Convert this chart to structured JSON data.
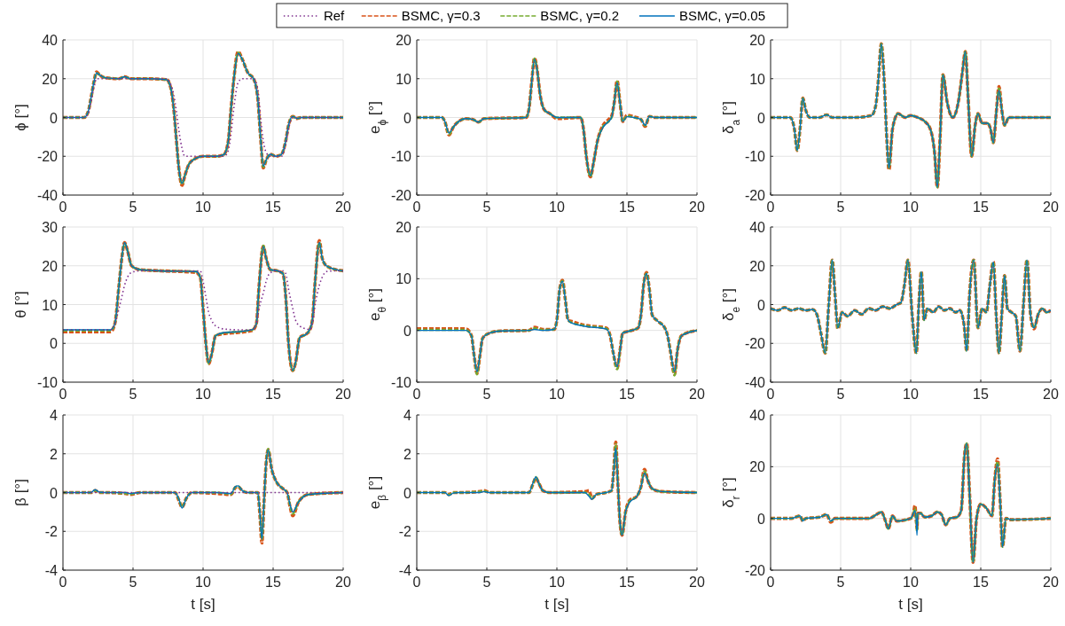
{
  "chart_data": [
    {
      "type": "line",
      "ylabel": "ϕ [°]",
      "legend": "top",
      "grid": true,
      "xlim": [
        0,
        20
      ],
      "xticks": [
        0,
        5,
        10,
        15,
        20
      ],
      "ylim": [
        -40,
        40
      ],
      "yticks": [
        -40,
        -20,
        0,
        20,
        40
      ],
      "x": [
        0,
        1.5,
        1.8,
        2.0,
        2.2,
        2.4,
        2.6,
        3.0,
        4.0,
        4.4,
        4.8,
        6,
        7.4,
        7.7,
        7.9,
        8.1,
        8.3,
        8.5,
        8.7,
        9.0,
        9.5,
        10,
        11,
        11.5,
        11.8,
        12.0,
        12.2,
        12.5,
        12.8,
        13.2,
        13.6,
        13.9,
        14.1,
        14.3,
        14.5,
        14.8,
        15.2,
        15.6,
        15.9,
        16.1,
        16.4,
        16.7,
        17,
        20
      ],
      "series": [
        {
          "name": "Ref",
          "color": "#7e2f8e",
          "line_style": "dotted",
          "values": [
            0,
            0,
            2,
            8,
            15,
            20,
            20,
            20,
            20,
            20,
            20,
            20,
            20,
            17,
            12,
            3,
            -8,
            -16,
            -20,
            -20,
            -20,
            -20,
            -20,
            -20,
            -17,
            -8,
            5,
            18,
            20,
            20,
            20,
            15,
            0,
            -12,
            -18,
            -20,
            -20,
            -20,
            -14,
            -6,
            0,
            0,
            0,
            0
          ]
        },
        {
          "name": "BSMC, γ=0.3",
          "color": "#d95319",
          "line_style": "dashed",
          "values": [
            0,
            0,
            3,
            10,
            18,
            23.5,
            22,
            20.5,
            20,
            21,
            20,
            20,
            19.5,
            15,
            5,
            -12,
            -28,
            -35,
            -30,
            -24,
            -21,
            -20,
            -20,
            -19,
            -12,
            5,
            20,
            34,
            30,
            23,
            20,
            10,
            -10,
            -26,
            -22,
            -19,
            -20,
            -19,
            -12,
            -4,
            0.5,
            -0.5,
            0,
            0
          ]
        },
        {
          "name": "BSMC, γ=0.2",
          "color": "#77ac30",
          "line_style": "dashed",
          "values": [
            0,
            0,
            3,
            10,
            18,
            23,
            22,
            20.5,
            20,
            21,
            20,
            20,
            19.5,
            15,
            5,
            -12,
            -28,
            -34.5,
            -30,
            -24,
            -21,
            -20,
            -20,
            -19,
            -12,
            5,
            20,
            33.5,
            30,
            23,
            20,
            10,
            -10,
            -25.5,
            -22,
            -19,
            -20,
            -19,
            -12,
            -4,
            0.5,
            -0.5,
            0,
            0
          ]
        },
        {
          "name": "BSMC, γ=0.05",
          "color": "#0072bd",
          "line_style": "solid",
          "values": [
            0,
            0,
            3,
            10,
            18,
            23,
            22,
            20.5,
            20,
            21,
            20,
            20,
            19.5,
            15,
            5,
            -12,
            -28,
            -34,
            -30,
            -24,
            -21,
            -20,
            -20,
            -19,
            -12,
            5,
            20,
            33,
            30,
            23,
            20,
            10,
            -10,
            -25,
            -22,
            -19,
            -20,
            -19,
            -12,
            -4,
            0.5,
            -0.5,
            0,
            0
          ]
        }
      ]
    },
    {
      "type": "line",
      "ylabel": "e$_{ϕ}$ [°]",
      "grid": true,
      "xlim": [
        0,
        20
      ],
      "xticks": [
        0,
        5,
        10,
        15,
        20
      ],
      "ylim": [
        -20,
        20
      ],
      "yticks": [
        -20,
        -10,
        0,
        10,
        20
      ],
      "x": [
        0,
        1.8,
        2.0,
        2.3,
        2.6,
        3,
        3.5,
        4,
        4.4,
        4.8,
        7.8,
        8.0,
        8.2,
        8.4,
        8.6,
        8.8,
        9.1,
        9.5,
        10,
        11.7,
        11.9,
        12.1,
        12.4,
        12.6,
        12.9,
        13.3,
        13.7,
        13.9,
        14.1,
        14.3,
        14.5,
        14.7,
        15,
        15.5,
        16,
        16.3,
        16.6,
        17,
        20
      ],
      "series": [
        {
          "color": "#d95319",
          "line_style": "dashed",
          "values": [
            0,
            0,
            -1,
            -4.5,
            -2.5,
            -1,
            -0.3,
            -0.5,
            -1.2,
            -0.3,
            0,
            2,
            9,
            15.3,
            12,
            6,
            2,
            1,
            -0.3,
            0,
            -3,
            -10,
            -15.3,
            -12,
            -6,
            -2,
            -0.5,
            0.3,
            4,
            9.5,
            4,
            -1,
            0.6,
            0.2,
            -0.5,
            -2.3,
            0.3,
            0,
            0
          ]
        },
        {
          "color": "#77ac30",
          "line_style": "dashed",
          "values": [
            0,
            0,
            -1,
            -4.3,
            -2.5,
            -1,
            -0.3,
            -0.5,
            -1.2,
            -0.3,
            0,
            2,
            9,
            15.2,
            12,
            6,
            2,
            1,
            0,
            0,
            -3,
            -10,
            -15.2,
            -12,
            -6,
            -2.3,
            -1,
            0,
            4,
            9.3,
            4,
            -1,
            0.4,
            0,
            -0.5,
            -2.1,
            0.3,
            0,
            0
          ]
        },
        {
          "color": "#0072bd",
          "line_style": "solid",
          "values": [
            0,
            0,
            -1,
            -4,
            -2.5,
            -1,
            -0.3,
            -0.5,
            -1.2,
            -0.3,
            0,
            2,
            9,
            15,
            12,
            6,
            2,
            1,
            0,
            0,
            -3,
            -10,
            -15,
            -12,
            -6,
            -2.5,
            -1,
            0,
            4,
            9,
            4,
            -1,
            0.2,
            0,
            -0.5,
            -2,
            0.3,
            0,
            0
          ]
        }
      ]
    },
    {
      "type": "line",
      "ylabel": "δ$_{a}$ [°]",
      "grid": true,
      "xlim": [
        0,
        20
      ],
      "xticks": [
        0,
        5,
        10,
        15,
        20
      ],
      "ylim": [
        -20,
        20
      ],
      "yticks": [
        -20,
        -10,
        0,
        10,
        20
      ],
      "x": [
        0,
        1.4,
        1.7,
        1.9,
        2.1,
        2.3,
        2.5,
        2.8,
        3.5,
        4.0,
        4.4,
        6,
        7.2,
        7.5,
        7.7,
        7.9,
        8.1,
        8.3,
        8.45,
        8.7,
        9.1,
        9.6,
        10,
        10.5,
        11,
        11.4,
        11.7,
        11.9,
        12.1,
        12.3,
        12.6,
        13.0,
        13.4,
        13.7,
        13.9,
        14.1,
        14.35,
        14.6,
        14.8,
        15.1,
        15.5,
        15.7,
        15.9,
        16.1,
        16.3,
        16.5,
        16.7,
        17,
        20
      ],
      "series": [
        {
          "color": "#d95319",
          "line_style": "dashed",
          "values": [
            0,
            0,
            -3,
            -8.5,
            -3,
            5,
            2,
            0,
            0,
            0.7,
            0,
            0,
            0.5,
            3,
            10,
            19,
            10,
            -6,
            -13.5,
            -3,
            1,
            0,
            0.5,
            0,
            -1,
            -3,
            -9,
            -18,
            -5,
            11,
            4,
            0,
            4,
            12,
            17,
            5,
            -10,
            -2,
            1,
            -1.5,
            -1.5,
            -3,
            -6.5,
            1,
            8,
            2,
            -2,
            0,
            0
          ]
        },
        {
          "color": "#77ac30",
          "line_style": "dashed",
          "values": [
            0,
            0,
            -3,
            -8.5,
            -3,
            5,
            2,
            0,
            0,
            0.7,
            0,
            0,
            0.5,
            3,
            10,
            19,
            10,
            -6,
            -13,
            -3,
            1,
            0,
            0.5,
            0,
            -1,
            -3,
            -9,
            -18,
            -5,
            11,
            4,
            0,
            4,
            12,
            17,
            5,
            -10,
            -2,
            1,
            -1.5,
            -1.5,
            -3,
            -6.5,
            1,
            7.5,
            2,
            -2,
            0,
            0
          ]
        },
        {
          "color": "#0072bd",
          "line_style": "solid",
          "values": [
            0,
            0,
            -3,
            -8.5,
            -3,
            5,
            2,
            0,
            0,
            0.7,
            0,
            0,
            0.5,
            3,
            10,
            19,
            10,
            -6,
            -13,
            -3,
            1,
            0,
            0.5,
            0,
            -1,
            -3,
            -9,
            -18,
            -5,
            11,
            4,
            0,
            4,
            12,
            17,
            5,
            -10,
            -2,
            1,
            -1.5,
            -1.5,
            -3,
            -6.5,
            1,
            7,
            2,
            -2,
            0,
            0
          ]
        }
      ]
    },
    {
      "type": "line",
      "ylabel": "θ [°]",
      "grid": true,
      "xlim": [
        0,
        20
      ],
      "xticks": [
        0,
        5,
        10,
        15,
        20
      ],
      "ylim": [
        -10,
        30
      ],
      "yticks": [
        -10,
        0,
        10,
        20,
        30
      ],
      "x": [
        0,
        3.4,
        3.7,
        4.0,
        4.2,
        4.4,
        4.6,
        4.9,
        5.5,
        7,
        9.5,
        9.8,
        10.0,
        10.2,
        10.4,
        10.6,
        10.9,
        11.5,
        12.5,
        13.5,
        13.8,
        14.0,
        14.3,
        14.5,
        14.8,
        15.3,
        15.7,
        15.9,
        16.1,
        16.4,
        16.6,
        16.9,
        17.4,
        17.6,
        17.8,
        18.0,
        18.3,
        18.5,
        18.8,
        19.5,
        20
      ],
      "series": [
        {
          "color": "#7e2f8e",
          "line_style": "dotted",
          "values": [
            3.5,
            3.5,
            5,
            9,
            12,
            15,
            17,
            18.3,
            18.7,
            18.7,
            18.7,
            18.7,
            16,
            12,
            8,
            6,
            4.5,
            3.7,
            3.5,
            3.5,
            5,
            9,
            13,
            16,
            18.2,
            18.7,
            18.7,
            18,
            14,
            9,
            6,
            4.5,
            3.7,
            3.5,
            5,
            10,
            15,
            17,
            18.5,
            18.7,
            18.7
          ]
        },
        {
          "color": "#d95319",
          "line_style": "dashed",
          "values": [
            3,
            3,
            5,
            15,
            22,
            26,
            24,
            20,
            19,
            18.7,
            18.3,
            17,
            9,
            0,
            -5.3,
            -3,
            2,
            2.5,
            2.8,
            3.3,
            5,
            15,
            25,
            22,
            19,
            18.7,
            18,
            12,
            0,
            -7,
            -5,
            1.5,
            2.5,
            3.3,
            6,
            16,
            26.5,
            22,
            20,
            19,
            18.7
          ]
        },
        {
          "color": "#77ac30",
          "line_style": "dashed",
          "values": [
            3.3,
            3.3,
            5,
            15,
            22,
            25.8,
            24,
            20,
            19,
            18.7,
            18.5,
            17,
            9,
            0,
            -5.2,
            -3,
            2,
            2.7,
            3,
            3.5,
            5,
            15,
            25.2,
            22,
            19,
            18.7,
            18,
            12,
            0,
            -7,
            -5,
            1.5,
            2.5,
            3.5,
            6,
            16,
            26,
            22,
            20,
            19,
            18.7
          ]
        },
        {
          "color": "#0072bd",
          "line_style": "solid",
          "values": [
            3.5,
            3.5,
            5,
            15,
            22,
            26,
            24,
            20,
            19,
            18.7,
            18.5,
            17,
            9,
            0,
            -5,
            -3,
            2,
            2.8,
            3,
            3.5,
            5,
            15,
            25,
            22,
            19,
            18.7,
            18,
            12,
            0,
            -7,
            -5,
            1.5,
            2.5,
            3.5,
            6,
            16,
            26,
            22,
            20,
            19,
            18.7
          ]
        }
      ]
    },
    {
      "type": "line",
      "ylabel": "e$_{θ}$ [°]",
      "grid": true,
      "xlim": [
        0,
        20
      ],
      "xticks": [
        0,
        5,
        10,
        15,
        20
      ],
      "ylim": [
        -10,
        20
      ],
      "yticks": [
        -10,
        0,
        10,
        20
      ],
      "x": [
        0,
        3.5,
        3.9,
        4.1,
        4.3,
        4.5,
        4.7,
        5.2,
        6,
        8,
        8.4,
        9,
        9.8,
        10.0,
        10.2,
        10.4,
        10.6,
        10.8,
        11,
        12,
        13.5,
        13.8,
        14.0,
        14.3,
        14.5,
        14.7,
        15.2,
        15.8,
        16.0,
        16.2,
        16.4,
        16.6,
        16.8,
        17.2,
        17.7,
        17.9,
        18.1,
        18.4,
        18.6,
        18.9,
        20
      ],
      "series": [
        {
          "color": "#d95319",
          "line_style": "dashed",
          "values": [
            0.3,
            0.3,
            -1,
            -5,
            -8.3,
            -5,
            -1.5,
            -0.5,
            -0.1,
            0,
            0.6,
            0.2,
            0.2,
            2,
            8,
            9.7,
            6,
            2,
            1.8,
            1,
            0.5,
            -1,
            -4,
            -7.3,
            -4,
            -0.5,
            -0.1,
            0.5,
            3,
            9,
            11.2,
            8,
            3,
            1.8,
            0.5,
            -1,
            -4,
            -8.5,
            -4,
            -1,
            0
          ]
        },
        {
          "color": "#77ac30",
          "line_style": "dashed",
          "values": [
            0.1,
            0.1,
            -1,
            -5,
            -8.5,
            -5,
            -1.5,
            -0.5,
            -0.1,
            0,
            0.4,
            0.1,
            0.2,
            2,
            8,
            9.6,
            6,
            2,
            1.6,
            0.9,
            0.4,
            -1,
            -4,
            -7.5,
            -4,
            -0.5,
            -0.1,
            0.5,
            3,
            9,
            11,
            8,
            3,
            1.8,
            0.5,
            -1,
            -4,
            -8.7,
            -4,
            -1,
            0
          ]
        },
        {
          "color": "#0072bd",
          "line_style": "solid",
          "values": [
            0,
            0,
            -1,
            -5,
            -8,
            -5,
            -1.5,
            -0.5,
            -0.1,
            0,
            0.2,
            0,
            0.2,
            2,
            8,
            9.5,
            6,
            2,
            1.5,
            0.8,
            0.3,
            -1,
            -4,
            -7,
            -4,
            -0.5,
            -0.1,
            0.5,
            3,
            9,
            11,
            8,
            3,
            1.8,
            0.5,
            -1,
            -4,
            -8,
            -4,
            -1,
            0
          ]
        }
      ]
    },
    {
      "type": "line",
      "ylabel": "δ$_{e}$ [°]",
      "grid": true,
      "xlim": [
        0,
        20
      ],
      "xticks": [
        0,
        5,
        10,
        15,
        20
      ],
      "ylim": [
        -40,
        40
      ],
      "yticks": [
        -40,
        -20,
        0,
        20,
        40
      ],
      "x": [
        0,
        0.5,
        1,
        1.5,
        2,
        2.5,
        3,
        3.3,
        3.6,
        3.9,
        4.15,
        4.4,
        4.6,
        4.8,
        5.1,
        5.5,
        6,
        6.5,
        7,
        7.5,
        8,
        8.5,
        9,
        9.3,
        9.55,
        9.8,
        10.1,
        10.4,
        10.58,
        10.76,
        10.95,
        11.2,
        11.6,
        12,
        12.4,
        12.8,
        13.2,
        13.5,
        13.8,
        14.0,
        14.2,
        14.5,
        14.8,
        15.1,
        15.4,
        15.65,
        15.9,
        16.1,
        16.3,
        16.5,
        16.7,
        16.9,
        17.2,
        17.5,
        17.8,
        18.05,
        18.3,
        18.55,
        18.8,
        19.1,
        19.4,
        19.7,
        20
      ],
      "series": [
        {
          "color": "#d95319",
          "line_style": "dashed",
          "values": [
            -2,
            -3,
            -1.5,
            -3,
            -2,
            -3,
            -2.5,
            -5,
            -15,
            -25,
            0,
            23,
            5,
            -12.5,
            -4,
            -6,
            -3,
            -5,
            -2,
            -3,
            -1,
            -2,
            0,
            1,
            10,
            23,
            -5,
            -25,
            0,
            17,
            -8,
            -2,
            -4,
            -1,
            -3,
            -2,
            -4,
            -3,
            -10,
            -24,
            5,
            23,
            -12,
            -2,
            -4,
            10,
            22,
            -5,
            -25,
            -5,
            15,
            -2,
            -4,
            -6,
            -24,
            0,
            23,
            -5,
            -12.5,
            -5,
            -2,
            -4,
            -3
          ]
        },
        {
          "color": "#77ac30",
          "line_style": "dashed",
          "values": [
            -2,
            -3,
            -1.5,
            -3,
            -2,
            -3,
            -2.5,
            -5,
            -15,
            -25,
            0,
            23,
            5,
            -12.3,
            -4,
            -6,
            -3,
            -5,
            -2,
            -3,
            -1,
            -2,
            0,
            1,
            10,
            23,
            -5,
            -25,
            0,
            17,
            -8,
            -2,
            -4,
            -1,
            -3,
            -2,
            -4,
            -3,
            -10,
            -24,
            5,
            23,
            -12,
            -2,
            -4,
            10,
            22,
            -5,
            -25,
            -5,
            15,
            -2,
            -4,
            -6,
            -24,
            0,
            23,
            -5,
            -12,
            -5,
            -2,
            -4,
            -3
          ]
        },
        {
          "color": "#0072bd",
          "line_style": "solid",
          "values": [
            -2,
            -3,
            -1.5,
            -3,
            -2,
            -3,
            -2.5,
            -5,
            -15,
            -25,
            0,
            23,
            5,
            -12,
            -4,
            -6,
            -3,
            -5,
            -2,
            -3,
            -1,
            -2,
            0,
            1,
            10,
            23,
            -5,
            -25,
            0,
            17,
            -8,
            -2,
            -4,
            -1,
            -3,
            -2,
            -4,
            -3,
            -10,
            -24,
            5,
            23,
            -12,
            -2,
            -4,
            10,
            22,
            -5,
            -25,
            -5,
            15,
            -2,
            -4,
            -6,
            -24,
            0,
            23,
            -5,
            -12,
            -5,
            -2,
            -4,
            -3
          ]
        }
      ]
    },
    {
      "type": "line",
      "ylabel": "β [°]",
      "xlabel": "t [s]",
      "grid": true,
      "xlim": [
        0,
        20
      ],
      "xticks": [
        0,
        5,
        10,
        15,
        20
      ],
      "ylim": [
        -4,
        4
      ],
      "yticks": [
        -4,
        -2,
        0,
        2,
        4
      ],
      "x": [
        0,
        2.0,
        2.3,
        2.6,
        3,
        4.5,
        4.8,
        5.5,
        8,
        8.3,
        8.5,
        8.8,
        9.2,
        11,
        12.0,
        12.3,
        12.5,
        12.8,
        13.2,
        13.9,
        14.05,
        14.2,
        14.35,
        14.5,
        14.65,
        14.9,
        15.2,
        15.7,
        16.0,
        16.2,
        16.4,
        16.8,
        17.5,
        20
      ],
      "series": [
        {
          "color": "#7e2f8e",
          "line_style": "dotted",
          "values": [
            0,
            0,
            0,
            0,
            0,
            0,
            0,
            0,
            0,
            0,
            0,
            0,
            0,
            0,
            0,
            0,
            0,
            0,
            0,
            0,
            0,
            0,
            0,
            0,
            0,
            0,
            0,
            0,
            0,
            0,
            0,
            0,
            0,
            0
          ]
        },
        {
          "color": "#d95319",
          "line_style": "dashed",
          "values": [
            0,
            0,
            0.1,
            0,
            0,
            -0.05,
            -0.1,
            0,
            0,
            -0.45,
            -0.75,
            -0.3,
            0,
            -0.05,
            -0.1,
            0.25,
            0.3,
            0.1,
            0,
            0,
            -1.1,
            -2.6,
            -0.5,
            1.5,
            2.2,
            1.2,
            0.6,
            0.2,
            0,
            -0.7,
            -1.2,
            -0.5,
            -0.1,
            0
          ]
        },
        {
          "color": "#77ac30",
          "line_style": "dashed",
          "values": [
            0,
            0,
            0.12,
            0,
            0,
            -0.05,
            -0.08,
            0,
            0,
            -0.42,
            -0.75,
            -0.3,
            0,
            0,
            -0.08,
            0.28,
            0.32,
            0.1,
            0,
            0,
            -1,
            -2.4,
            -0.5,
            1.5,
            2.25,
            1.2,
            0.6,
            0.2,
            0,
            -0.65,
            -1.1,
            -0.5,
            -0.1,
            0
          ]
        },
        {
          "color": "#0072bd",
          "line_style": "solid",
          "values": [
            0,
            0,
            0.15,
            0.02,
            0,
            0,
            -0.05,
            0,
            0,
            -0.4,
            -0.8,
            -0.3,
            0,
            0,
            -0.05,
            0.3,
            0.35,
            0.1,
            0,
            0,
            -1,
            -2.4,
            -0.5,
            1.5,
            2.2,
            1.2,
            0.6,
            0.2,
            0,
            -0.6,
            -1,
            -0.5,
            -0.1,
            0
          ]
        }
      ]
    },
    {
      "type": "line",
      "ylabel": "e$_{β}$ [°]",
      "xlabel": "t [s]",
      "grid": true,
      "xlim": [
        0,
        20
      ],
      "xticks": [
        0,
        5,
        10,
        15,
        20
      ],
      "ylim": [
        -4,
        4
      ],
      "yticks": [
        -4,
        -2,
        0,
        2,
        4
      ],
      "x": [
        0,
        2.0,
        2.3,
        2.6,
        3,
        4.5,
        4.8,
        5.2,
        8,
        8.3,
        8.5,
        8.7,
        9.0,
        9.5,
        12,
        12.3,
        12.5,
        12.8,
        13.5,
        13.9,
        14.05,
        14.2,
        14.35,
        14.5,
        14.65,
        14.9,
        15.2,
        15.7,
        16.0,
        16.25,
        16.5,
        16.8,
        17.5,
        20
      ],
      "series": [
        {
          "color": "#d95319",
          "line_style": "dashed",
          "values": [
            0,
            0,
            -0.1,
            0,
            0,
            0.05,
            0.1,
            0,
            0,
            0.45,
            0.75,
            0.5,
            0.1,
            0,
            0.05,
            0.1,
            -0.3,
            -0.1,
            0,
            0.1,
            1.1,
            2.6,
            0.5,
            -1.5,
            -2.2,
            -1,
            -0.4,
            -0.2,
            0.3,
            1.2,
            0.6,
            0.2,
            0.05,
            0
          ]
        },
        {
          "color": "#77ac30",
          "line_style": "dashed",
          "values": [
            0,
            0,
            -0.12,
            0,
            0,
            0.05,
            0.08,
            0,
            0,
            0.45,
            0.8,
            0.5,
            0.1,
            0,
            0,
            -0.1,
            -0.32,
            -0.1,
            0,
            0.1,
            1,
            2.5,
            0.5,
            -1.5,
            -2.2,
            -1,
            -0.45,
            -0.2,
            0.3,
            1.1,
            0.6,
            0.2,
            0.05,
            0
          ]
        },
        {
          "color": "#0072bd",
          "line_style": "solid",
          "values": [
            0,
            0,
            -0.15,
            -0.03,
            0,
            0,
            0.05,
            0,
            0,
            0.5,
            0.8,
            0.5,
            0.1,
            0,
            0,
            -0.2,
            -0.35,
            -0.1,
            0,
            0.1,
            1,
            2.3,
            0.5,
            -1.5,
            -2.2,
            -1,
            -0.5,
            -0.2,
            0.3,
            1,
            0.6,
            0.2,
            0.05,
            0
          ]
        }
      ]
    },
    {
      "type": "line",
      "ylabel": "δ$_{r}$ [°]",
      "xlabel": "t [s]",
      "grid": true,
      "xlim": [
        0,
        20
      ],
      "xticks": [
        0,
        5,
        10,
        15,
        20
      ],
      "ylim": [
        -20,
        40
      ],
      "yticks": [
        -20,
        0,
        20,
        40
      ],
      "x": [
        0,
        1.5,
        2.1,
        2.3,
        2.5,
        3.5,
        4.0,
        4.3,
        4.6,
        5,
        7,
        7.7,
        7.9,
        8.2,
        8.4,
        8.7,
        9,
        10,
        10.2,
        10.3,
        10.4,
        10.45,
        10.5,
        10.7,
        11,
        11.5,
        11.9,
        12.2,
        12.5,
        12.8,
        13.3,
        13.6,
        13.85,
        14.0,
        14.2,
        14.45,
        14.7,
        15.0,
        15.4,
        15.8,
        16.0,
        16.2,
        16.4,
        16.55,
        16.8,
        17.2,
        20
      ],
      "series": [
        {
          "color": "#d95319",
          "line_style": "dashed",
          "values": [
            0,
            0,
            1,
            -1,
            0,
            0.5,
            1.5,
            -1.5,
            0,
            0,
            0,
            2,
            2.5,
            -1,
            -4,
            1,
            -1,
            0,
            2,
            5,
            -1,
            -4,
            2,
            2,
            0.5,
            1,
            2.5,
            1.5,
            -2.5,
            0,
            0.5,
            3,
            25,
            29,
            10,
            -17,
            0,
            5.5,
            4,
            1,
            15,
            23,
            5,
            -11,
            0,
            -0.5,
            0
          ]
        },
        {
          "color": "#77ac30",
          "line_style": "dashed",
          "values": [
            0,
            0,
            1,
            -1,
            0,
            0.5,
            1.5,
            -1,
            0,
            0,
            0,
            2,
            2.5,
            -1,
            -4,
            1,
            -1,
            0,
            2,
            4,
            -2,
            -5,
            2,
            2,
            0.5,
            1,
            2.5,
            1.5,
            -2.5,
            0,
            0.5,
            3,
            25,
            29,
            10,
            -17,
            0,
            5.5,
            4,
            1,
            15,
            22,
            5,
            -11,
            0,
            -0.5,
            0
          ]
        },
        {
          "color": "#0072bd",
          "line_style": "solid",
          "values": [
            0,
            0,
            1,
            -1,
            0,
            0.5,
            1.5,
            -1,
            0,
            0,
            0,
            2,
            2.5,
            -1,
            -4,
            1,
            -1,
            0,
            2,
            3,
            -1,
            -6.5,
            2,
            2,
            0.5,
            1,
            2.5,
            1.5,
            -2.5,
            0,
            0.5,
            3,
            25,
            29,
            10,
            -17,
            0,
            5.5,
            4,
            1,
            15,
            21,
            5,
            -11,
            0,
            -0.5,
            0
          ]
        }
      ]
    }
  ]
}
